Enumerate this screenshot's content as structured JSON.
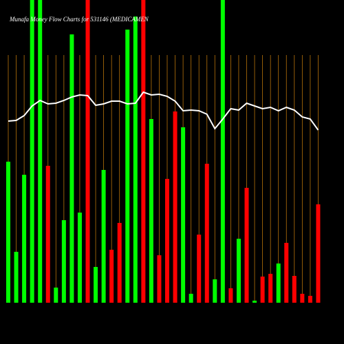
{
  "chart_data": {
    "type": "bar",
    "title": "Munafa Money Flow Charts for 531146 (MEDICAMEN",
    "values": [
      205,
      74,
      186,
      440,
      440,
      199,
      22,
      120,
      390,
      131,
      440,
      52,
      193,
      77,
      116,
      397,
      416,
      440,
      267,
      69,
      180,
      278,
      255,
      13,
      99,
      202,
      34,
      440,
      21,
      93,
      167,
      3,
      38,
      42,
      57,
      87,
      39,
      13,
      10,
      143
    ],
    "colors": [
      "#00ff00",
      "#00ff00",
      "#00ff00",
      "#00ff00",
      "#00ff00",
      "#ff0000",
      "#00ff00",
      "#00ff00",
      "#00ff00",
      "#00ff00",
      "#ff0000",
      "#00ff00",
      "#00ff00",
      "#ff0000",
      "#ff0000",
      "#00ff00",
      "#00ff00",
      "#ff0000",
      "#00ff00",
      "#ff0000",
      "#ff0000",
      "#ff0000",
      "#00ff00",
      "#00ff00",
      "#ff0000",
      "#ff0000",
      "#00ff00",
      "#00ff00",
      "#ff0000",
      "#00ff00",
      "#ff0000",
      "#00ff00",
      "#ff0000",
      "#ff0000",
      "#00ff00",
      "#ff0000",
      "#ff0000",
      "#ff0000",
      "#ff0000",
      "#ff0000"
    ],
    "line": {
      "color": "#ffffff",
      "values": [
        264,
        265,
        272,
        286,
        294,
        289,
        290,
        294,
        299,
        302,
        301,
        287,
        289,
        293,
        293,
        289,
        290,
        306,
        302,
        303,
        300,
        293,
        279,
        280,
        279,
        274,
        253,
        267,
        282,
        280,
        290,
        286,
        282,
        284,
        279,
        284,
        280,
        270,
        267,
        251
      ]
    },
    "ylim": [
      0,
      440
    ]
  }
}
